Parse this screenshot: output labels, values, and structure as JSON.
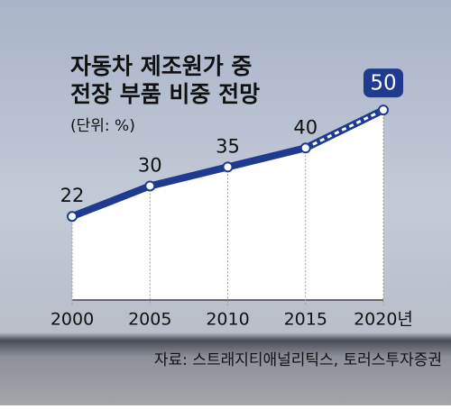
{
  "chart_data": {
    "type": "area-line",
    "title": [
      "자동차 제조원가 중",
      "전장 부품 비중 전망"
    ],
    "subtitle": "(단위: %)",
    "source": "자료: 스트래지티애널리틱스, 토러스투자증권",
    "categories": [
      "2000",
      "2005",
      "2010",
      "2015",
      "2020년"
    ],
    "values": [
      22,
      30,
      35,
      40,
      50
    ],
    "color": "#1f3a8f",
    "ylim": [
      0,
      55
    ]
  }
}
